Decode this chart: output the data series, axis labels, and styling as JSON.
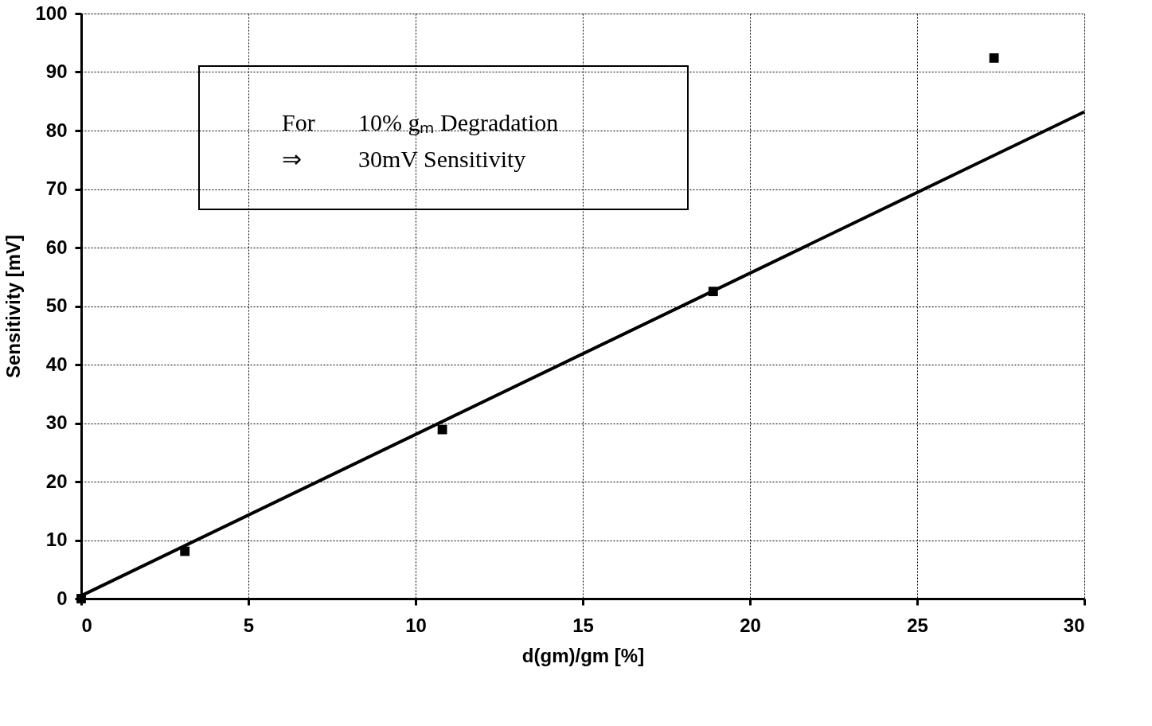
{
  "chart_data": {
    "type": "scatter",
    "xlabel": "d(gm)/gm [%]",
    "ylabel": "Sensitivity [mV]",
    "annotations": [
      "For    10% gₘ Degradation",
      "⇒      30mV Sensitivity"
    ],
    "series": [
      {
        "color": "#000000",
        "marker": "square",
        "x": [
          0,
          3.1,
          10.8,
          18.9,
          27.3
        ],
        "values": [
          0,
          8.1,
          28.9,
          52.5,
          92.4
        ]
      },
      {
        "type": "line",
        "color": "#000000",
        "marker": "none",
        "line_style": "solid",
        "x": [
          0,
          30
        ],
        "values": [
          0.5,
          83.2
        ]
      }
    ],
    "xlim": [
      0,
      30
    ],
    "xticks": [
      0,
      5,
      10,
      15,
      20,
      25,
      30
    ],
    "ylim": [
      0,
      100
    ],
    "yticks": [
      0,
      10,
      20,
      30,
      40,
      50,
      60,
      70,
      80,
      90,
      100
    ],
    "grid": true
  }
}
